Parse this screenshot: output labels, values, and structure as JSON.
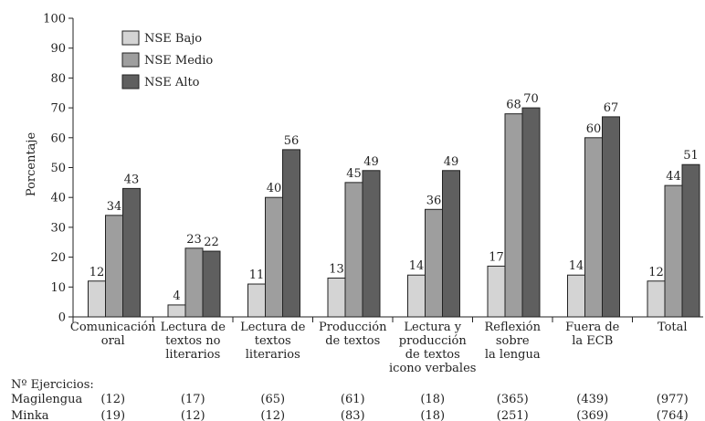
{
  "chart_data": {
    "type": "bar",
    "ylabel": "Porcentaje",
    "ylim": [
      0,
      100
    ],
    "yticks": [
      0,
      10,
      20,
      30,
      40,
      50,
      60,
      70,
      80,
      90,
      100
    ],
    "categories": [
      [
        "Comunicación",
        "oral"
      ],
      [
        "Lectura de",
        "textos no",
        "literarios"
      ],
      [
        "Lectura de",
        "textos",
        "literarios"
      ],
      [
        "Producción",
        "de textos"
      ],
      [
        "Lectura y",
        "producción",
        "de textos",
        "icono verbales"
      ],
      [
        "Reflexión",
        "sobre",
        "la lengua"
      ],
      [
        "Fuera de",
        "la ECB"
      ],
      [
        "Total"
      ]
    ],
    "series": [
      {
        "name": "NSE Bajo",
        "color": "#d4d4d4",
        "values": [
          12,
          4,
          11,
          13,
          14,
          17,
          14,
          12
        ]
      },
      {
        "name": "NSE Medio",
        "color": "#9e9e9e",
        "values": [
          34,
          23,
          40,
          45,
          36,
          68,
          60,
          44
        ]
      },
      {
        "name": "NSE Alto",
        "color": "#5f5f5f",
        "values": [
          43,
          22,
          56,
          49,
          49,
          70,
          67,
          51
        ]
      }
    ],
    "legend_position": "top-left",
    "grid": false
  },
  "exercises": {
    "heading": "Nº Ejercicios:",
    "rows": [
      {
        "label": "Magilengua",
        "values": [
          "(12)",
          "(17)",
          "(65)",
          "(61)",
          "(18)",
          "(365)",
          "(439)",
          "(977)"
        ]
      },
      {
        "label": "Minka",
        "values": [
          "(19)",
          "(12)",
          "(12)",
          "(83)",
          "(18)",
          "(251)",
          "(369)",
          "(764)"
        ]
      }
    ]
  }
}
